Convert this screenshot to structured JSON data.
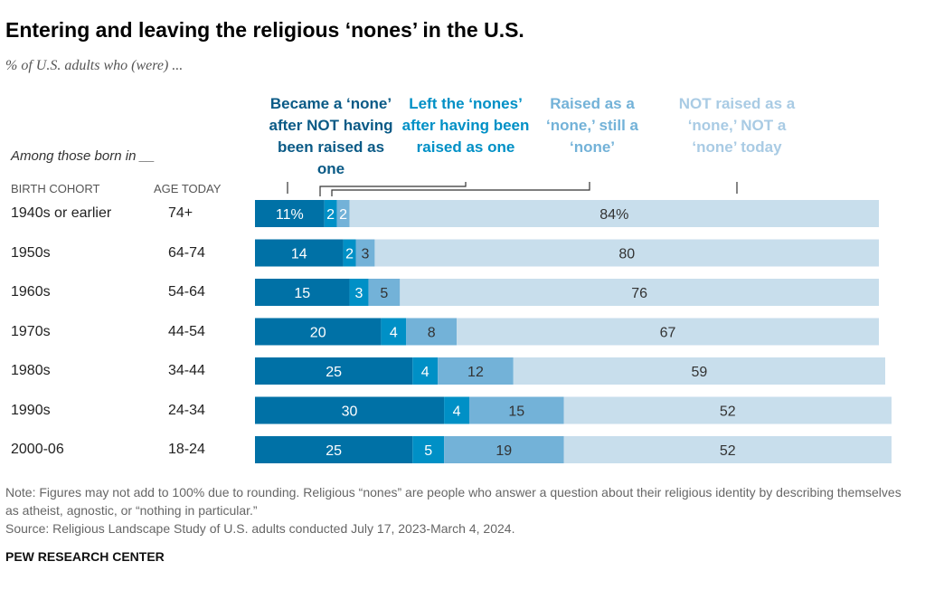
{
  "title": "Entering and leaving the religious ‘nones’ in the U.S.",
  "subtitle": "% of U.S. adults who (were) ...",
  "among_label": "Among those born in __",
  "col_cohort": "BIRTH COHORT",
  "col_age": "AGE TODAY",
  "note": "Note: Figures may not add to 100% due to rounding. Religious “nones” are people who answer a question about their religious identity by describing themselves as atheist, agnostic, or “nothing in particular.”",
  "source": "Source: Religious Landscape Study of U.S. adults conducted July 17, 2023-March 4, 2024.",
  "brand": "PEW RESEARCH CENTER",
  "chart_data": {
    "type": "bar",
    "orientation": "horizontal-stacked",
    "categories": [
      "1940s or earlier",
      "1950s",
      "1960s",
      "1970s",
      "1980s",
      "1990s",
      "2000-06"
    ],
    "ages": [
      "74+",
      "64-74",
      "54-64",
      "44-54",
      "34-44",
      "24-34",
      "18-24"
    ],
    "series": [
      {
        "name": "Became a ‘none’ after NOT having been raised as one",
        "color": "#0071a6",
        "values": [
          11,
          14,
          15,
          20,
          25,
          30,
          25
        ]
      },
      {
        "name": "Left the ‘nones’ after having been raised as one",
        "color": "#0090c6",
        "values": [
          2,
          2,
          3,
          4,
          4,
          4,
          5
        ]
      },
      {
        "name": "Raised as a ‘none,’ still a ‘none’",
        "color": "#73b2d8",
        "values": [
          2,
          3,
          5,
          8,
          12,
          15,
          19
        ]
      },
      {
        "name": "NOT raised as a ‘none,’ NOT a ‘none’ today",
        "color": "#c8deec",
        "values": [
          84,
          80,
          76,
          67,
          59,
          52,
          52
        ]
      }
    ],
    "first_row_percent_suffix": true
  }
}
